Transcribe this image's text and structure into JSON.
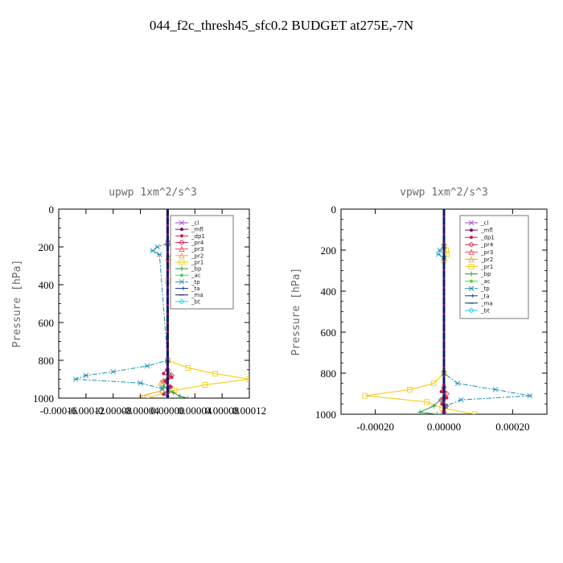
{
  "figure_title": "044_f2c_thresh45_sfc0.2  BUDGET at275E,-7N",
  "legend_entries": [
    {
      "name": "_cl",
      "color": "#9f43d6",
      "dash": "",
      "marker": "star"
    },
    {
      "name": "_mfl",
      "color": "#7a0a6e",
      "dash": "",
      "marker": "dot"
    },
    {
      "name": "_dp1",
      "color": "#c81e4a",
      "dash": "",
      "marker": "dot"
    },
    {
      "name": "_pr4",
      "color": "#d2244f",
      "dash": "",
      "marker": "diamond"
    },
    {
      "name": "_pr3",
      "color": "#ef4a5a",
      "dash": "",
      "marker": "tri"
    },
    {
      "name": "_pr2",
      "color": "#f2a21d",
      "dash": "",
      "marker": "tri"
    },
    {
      "name": "_pr1",
      "color": "#f5c800",
      "dash": "",
      "marker": "square"
    },
    {
      "name": "_bp",
      "color": "#1e9b3c",
      "dash": "",
      "marker": "plus"
    },
    {
      "name": "_ac",
      "color": "#49d93a",
      "dash": "",
      "marker": "dot"
    },
    {
      "name": "_tp",
      "color": "#1b8fb8",
      "dash": "6,2,2,2",
      "marker": "x"
    },
    {
      "name": "_ta",
      "color": "#1e3aa0",
      "dash": "",
      "marker": "arrow"
    },
    {
      "name": "_ma",
      "color": "#0a1e60",
      "dash": "",
      "marker": "dash"
    },
    {
      "name": "_bt",
      "color": "#17d4de",
      "dash": "",
      "marker": "diamond"
    }
  ],
  "chart_data": [
    {
      "type": "line",
      "title": "upwp   1xm^2/s^3",
      "ylabel": "Pressure [hPa]",
      "xlabel": "",
      "xlim": [
        -0.00016,
        0.00012
      ],
      "xticks": [
        -0.00016,
        -0.00012,
        -8e-05,
        -4e-05,
        0.0,
        4e-05,
        8e-05,
        0.00012
      ],
      "xtick_labels": [
        "-0.00016",
        "-0.00012",
        "-0.00008",
        "-0.00004",
        "0.00000",
        "0.00004",
        "0.00008",
        "0.00012"
      ],
      "ylim": [
        1000,
        0
      ],
      "yticks": [
        0,
        200,
        400,
        600,
        800,
        1000
      ],
      "ytick_labels": [
        "0",
        "200",
        "400",
        "600",
        "800",
        "1000"
      ],
      "legend_position": "top-right",
      "series": [
        {
          "name": "_pr1",
          "p": [
            180,
            200,
            220,
            240,
            260,
            380,
            800,
            840,
            870,
            900,
            930,
            960,
            1000
          ],
          "x": [
            2e-06,
            1.5e-05,
            2.8e-05,
            1.2e-05,
            4e-06,
            0.0,
            0.0,
            3e-05,
            7e-05,
            0.00012,
            5.5e-05,
            1e-05,
            -3e-05
          ]
        },
        {
          "name": "_pr2",
          "p": [
            180,
            200,
            220,
            240,
            260,
            800,
            880,
            920,
            960,
            990
          ],
          "x": [
            0.0,
            1.2e-05,
            1.8e-05,
            6e-06,
            0.0,
            0.0,
            2e-06,
            -1e-05,
            -8e-06,
            -4e-05
          ]
        },
        {
          "name": "_tp",
          "p": [
            180,
            200,
            220,
            240,
            800,
            830,
            860,
            880,
            900,
            920,
            950,
            1000
          ],
          "x": [
            0.0,
            -1.5e-05,
            -2.2e-05,
            -1.2e-05,
            0.0,
            -3e-05,
            -8e-05,
            -0.00012,
            -0.000135,
            -4e-05,
            -8e-06,
            0.0
          ]
        },
        {
          "name": "_bp",
          "p": [
            900,
            940,
            970,
            990,
            1000
          ],
          "x": [
            0.0,
            -6e-06,
            8e-06,
            1.8e-05,
            3e-05
          ]
        },
        {
          "name": "_dp1",
          "p": [
            840,
            870,
            890,
            910,
            940,
            980
          ],
          "x": [
            0.0,
            -6e-06,
            6e-06,
            -4e-06,
            4e-06,
            -6e-06
          ]
        },
        {
          "name": "_pr4",
          "p": [
            850,
            880,
            910,
            940,
            970
          ],
          "x": [
            0.0,
            6e-06,
            -6e-06,
            4e-06,
            0.0
          ]
        },
        {
          "name": "_mfl",
          "p": [
            0,
            1000
          ],
          "x": [
            0.0,
            0.0
          ]
        },
        {
          "name": "_ma",
          "p": [
            0,
            1000
          ],
          "x": [
            0.0,
            0.0
          ]
        }
      ]
    },
    {
      "type": "line",
      "title": "vpwp   1xm^2/s^3",
      "ylabel": "Pressure [hPa]",
      "xlabel": "",
      "xlim": [
        -0.0003,
        0.0003
      ],
      "xticks": [
        -0.0002,
        0.0,
        0.0002
      ],
      "xtick_labels": [
        "-0.00020",
        "0.00000",
        "0.00020"
      ],
      "ylim": [
        1000,
        0
      ],
      "yticks": [
        0,
        200,
        400,
        600,
        800,
        1000
      ],
      "ytick_labels": [
        "0",
        "200",
        "400",
        "600",
        "800",
        "1000"
      ],
      "legend_position": "top-right",
      "series": [
        {
          "name": "_pr1",
          "p": [
            180,
            200,
            220,
            250,
            800,
            850,
            880,
            910,
            940,
            970,
            1000
          ],
          "x": [
            0.0,
            6e-06,
            8e-06,
            0.0,
            0.0,
            -3e-05,
            -0.0001,
            -0.00023,
            -5e-05,
            -5e-06,
            9e-05
          ]
        },
        {
          "name": "_tp",
          "p": [
            180,
            200,
            220,
            240,
            800,
            850,
            880,
            910,
            930,
            960,
            1000
          ],
          "x": [
            0.0,
            -1.2e-05,
            -1.6e-05,
            0.0,
            0.0,
            4e-05,
            0.00015,
            0.00025,
            5e-05,
            5e-06,
            0.0
          ]
        },
        {
          "name": "_bp",
          "p": [
            920,
            960,
            990,
            1000
          ],
          "x": [
            -4e-06,
            -3e-05,
            -7e-05,
            -2e-05
          ]
        },
        {
          "name": "_dp1",
          "p": [
            860,
            890,
            920,
            950,
            980
          ],
          "x": [
            0.0,
            -8e-06,
            8e-06,
            -6e-06,
            0.0
          ]
        },
        {
          "name": "_pr4",
          "p": [
            870,
            900,
            930,
            960,
            990
          ],
          "x": [
            0.0,
            8e-06,
            -8e-06,
            6e-06,
            0.0
          ]
        },
        {
          "name": "_mfl",
          "p": [
            0,
            1000
          ],
          "x": [
            0.0,
            0.0
          ]
        },
        {
          "name": "_ma",
          "p": [
            0,
            1000
          ],
          "x": [
            0.0,
            0.0
          ]
        }
      ]
    }
  ]
}
